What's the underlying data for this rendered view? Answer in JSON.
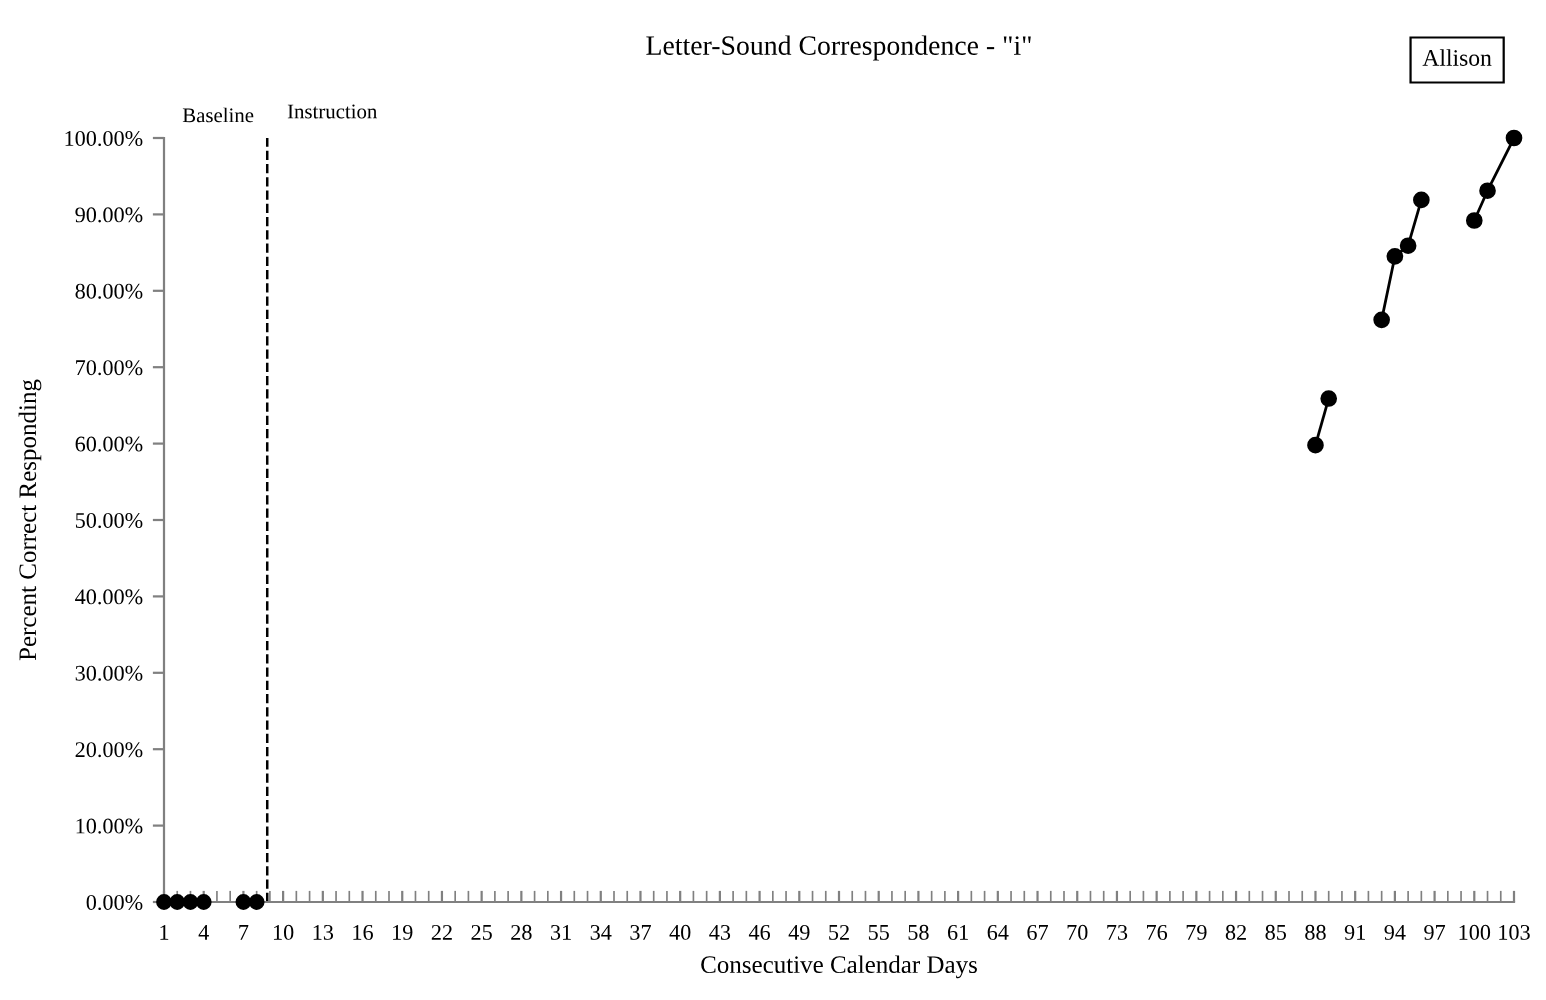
{
  "chart_data": {
    "type": "line",
    "title": "Letter-Sound Correspondence - \"i\"",
    "xlabel": "Consecutive Calendar Days",
    "ylabel": "Percent Correct Responding",
    "annotations": [
      "Baseline",
      "Instruction",
      "Allison"
    ],
    "series": [
      {
        "type": "scatter",
        "color": "#000000",
        "x": [
          1,
          2,
          3,
          4
        ],
        "values": [
          0,
          0,
          0,
          0
        ]
      },
      {
        "type": "scatter",
        "color": "#000000",
        "x": [
          7,
          8
        ],
        "values": [
          0,
          0
        ]
      },
      {
        "color": "#000000",
        "x": [
          88,
          89
        ],
        "values": [
          59.8,
          65.9
        ]
      },
      {
        "color": "#000000",
        "x": [
          93,
          94,
          95,
          96
        ],
        "values": [
          76.2,
          84.5,
          85.9,
          91.9
        ]
      },
      {
        "color": "#000000",
        "x": [
          100,
          101,
          103
        ],
        "values": [
          89.2,
          93.1,
          100
        ]
      }
    ],
    "xlim": [
      1,
      103
    ],
    "xticks": [
      1,
      4,
      7,
      10,
      13,
      16,
      19,
      22,
      25,
      28,
      31,
      34,
      37,
      40,
      43,
      46,
      49,
      52,
      55,
      58,
      61,
      64,
      67,
      70,
      73,
      76,
      79,
      82,
      85,
      88,
      91,
      94,
      97,
      100,
      103
    ],
    "ylim": [
      0,
      100
    ],
    "yticks": [
      {
        "value": 0,
        "label": "0.00%"
      },
      {
        "value": 10,
        "label": "10.00%"
      },
      {
        "value": 20,
        "label": "20.00%"
      },
      {
        "value": 30,
        "label": "30.00%"
      },
      {
        "value": 40,
        "label": "40.00%"
      },
      {
        "value": 50,
        "label": "50.00%"
      },
      {
        "value": 60,
        "label": "60.00%"
      },
      {
        "value": 70,
        "label": "70.00%"
      },
      {
        "value": 80,
        "label": "80.00%"
      },
      {
        "value": 90,
        "label": "90.00%"
      },
      {
        "value": 100,
        "label": "100.00%"
      }
    ],
    "ref_lines": [
      {
        "axis": "x",
        "value": 8.8,
        "label": null,
        "color": "#000000",
        "line_style": "dashed"
      }
    ],
    "grid": false,
    "marker": "circle",
    "line_style": "solid"
  }
}
